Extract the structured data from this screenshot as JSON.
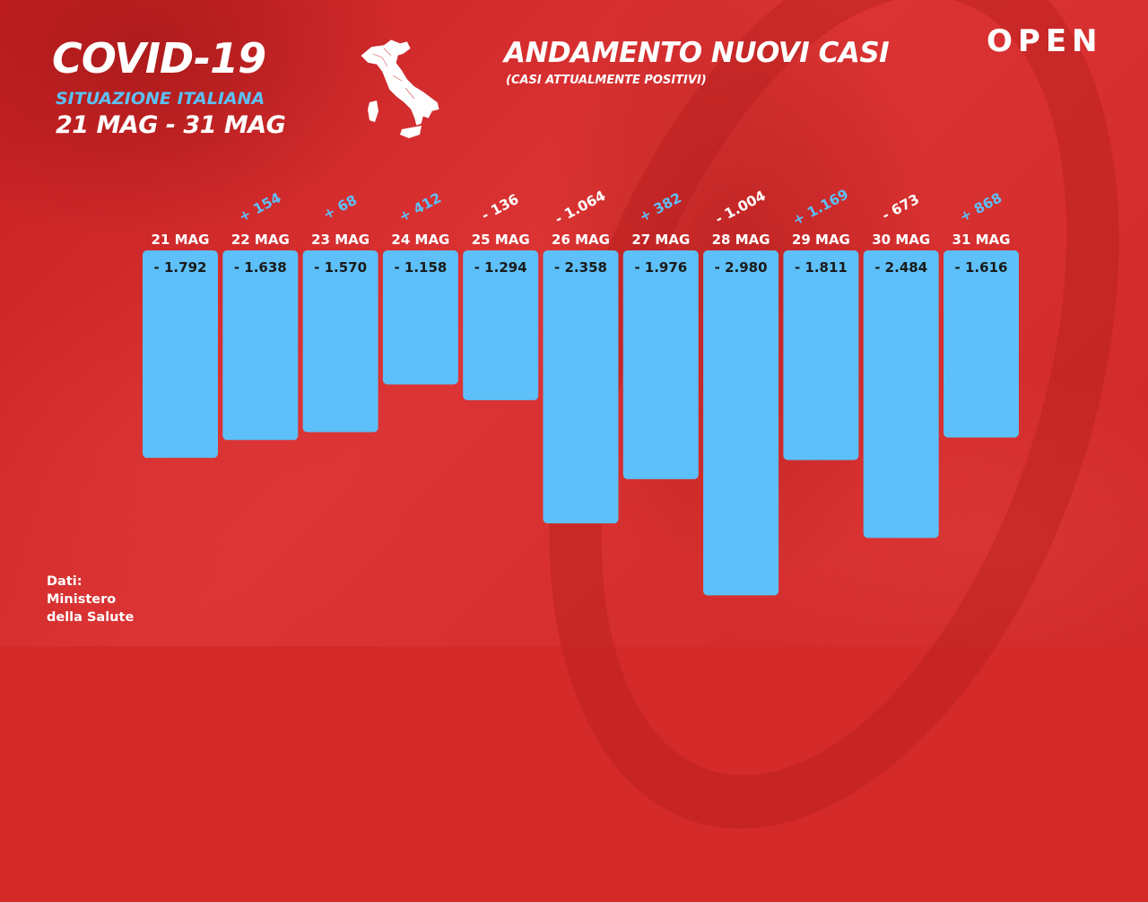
{
  "header": {
    "title": "COVID-19",
    "subtitle": "SITUAZIONE ITALIANA",
    "range": "21 MAG - 31 MAG",
    "logo": "OPEN"
  },
  "source": {
    "lines": [
      "Dati:",
      "Ministero",
      "della Salute"
    ]
  },
  "icons": {
    "map": "italy-map-icon"
  },
  "colors": {
    "background": "#d42a2a",
    "bar": "#5dc0f8",
    "positive_delta": "#5dc0f8",
    "negative_delta": "#ffffff",
    "value_text": "#1a1a1a"
  },
  "chart_data": {
    "type": "bar",
    "title": "ANDAMENTO NUOVI CASI",
    "subtitle": "(CASI ATTUALMENTE POSITIVI)",
    "categories": [
      "21 MAG",
      "22 MAG",
      "23 MAG",
      "24 MAG",
      "25 MAG",
      "26 MAG",
      "27 MAG",
      "28 MAG",
      "29 MAG",
      "30 MAG",
      "31 MAG"
    ],
    "values": [
      -1792,
      -1638,
      -1570,
      -1158,
      -1294,
      -2358,
      -1976,
      -2980,
      -1811,
      -2484,
      -1616
    ],
    "value_labels": [
      "- 1.792",
      "- 1.638",
      "- 1.570",
      "- 1.158",
      "- 1.294",
      "- 2.358",
      "- 1.976",
      "- 2.980",
      "- 1.811",
      "- 2.484",
      "- 1.616"
    ],
    "deltas": [
      null,
      154,
      68,
      412,
      -136,
      -1064,
      382,
      -1004,
      1169,
      -673,
      868
    ],
    "delta_labels": [
      "",
      "+ 154",
      "+ 68",
      "+ 412",
      "- 136",
      "- 1.064",
      "+ 382",
      "- 1.004",
      "+ 1.169",
      "- 673",
      "+ 868"
    ],
    "ylim": [
      -3000,
      0
    ],
    "grid": false,
    "legend": "none"
  }
}
